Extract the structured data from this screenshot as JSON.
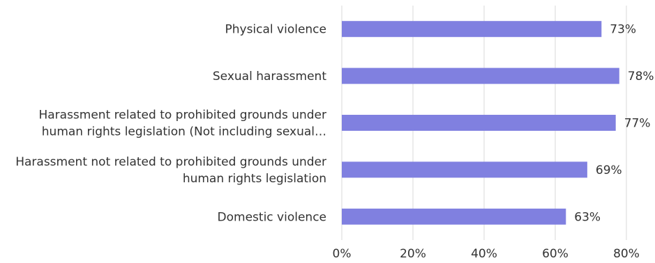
{
  "chart_data": {
    "type": "bar",
    "orientation": "horizontal",
    "title": "",
    "xlabel": "",
    "ylabel": "",
    "categories": [
      [
        "Physical violence"
      ],
      [
        "Sexual harassment"
      ],
      [
        "Harassment related to prohibited grounds under",
        "human rights legislation (Not including sexual…"
      ],
      [
        "Harassment not related to prohibited grounds under",
        "human rights legislation"
      ],
      [
        "Domestic violence"
      ]
    ],
    "values": [
      73,
      78,
      77,
      69,
      63
    ],
    "value_labels": [
      "73%",
      "78%",
      "77%",
      "69%",
      "63%"
    ],
    "xlim": [
      0,
      80
    ],
    "xticks": [
      0,
      20,
      40,
      60,
      80
    ],
    "xtick_labels": [
      "0%",
      "20%",
      "40%",
      "60%",
      "80%"
    ],
    "grid": "vertical",
    "legend": "none",
    "bar_color": "#8080e0",
    "grid_color": "#d9d9d9",
    "text_color": "#333333"
  }
}
